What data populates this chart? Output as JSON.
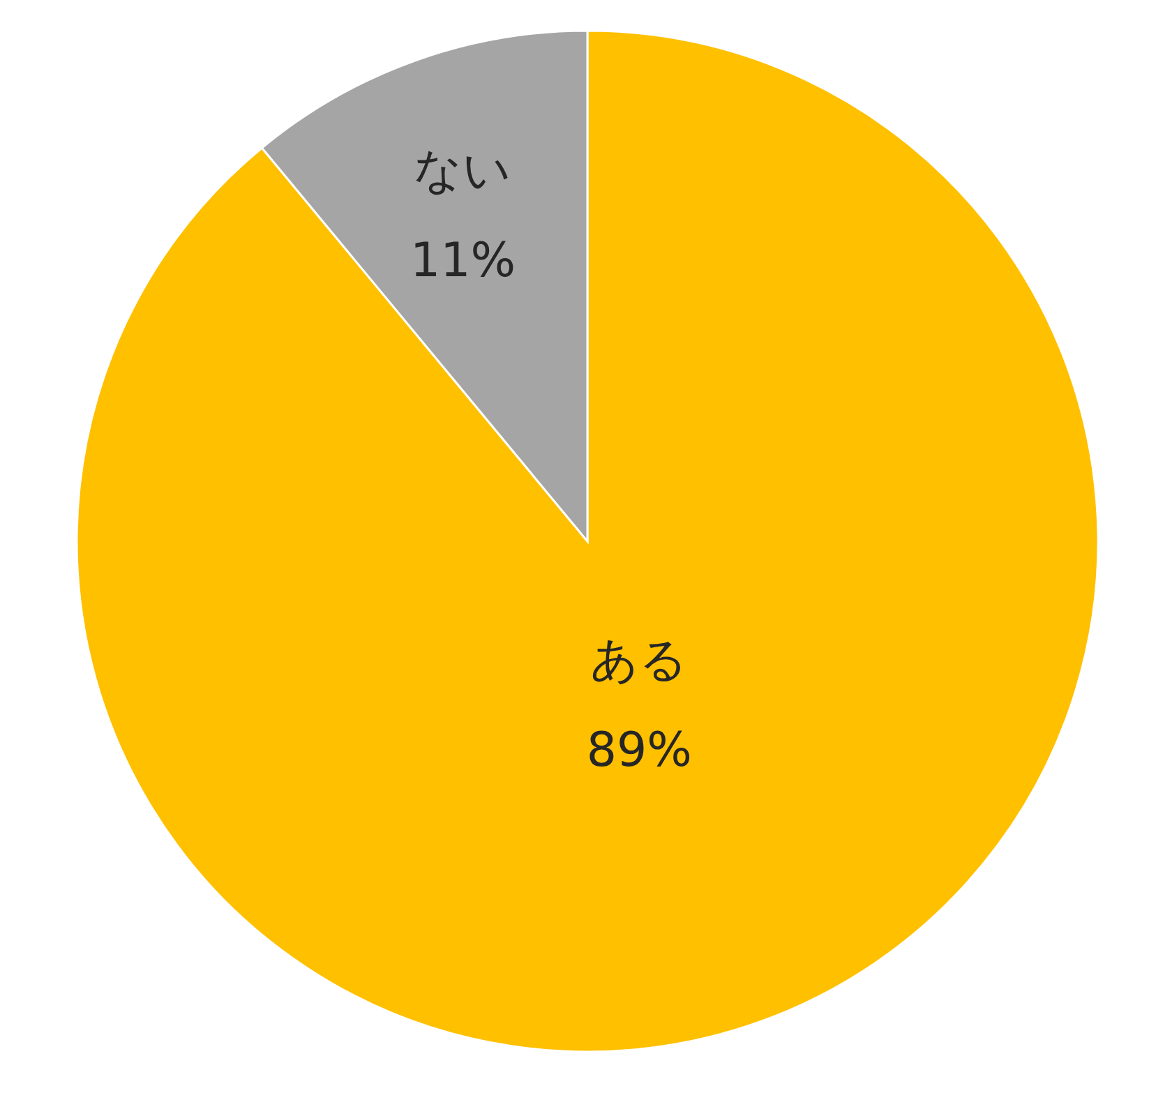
{
  "chart_data": {
    "type": "pie",
    "categories": [
      "ある",
      "ない"
    ],
    "values": [
      89,
      11
    ],
    "colors": [
      "#ffc000",
      "#a5a5a5"
    ],
    "value_labels": [
      "89%",
      "11%"
    ]
  }
}
